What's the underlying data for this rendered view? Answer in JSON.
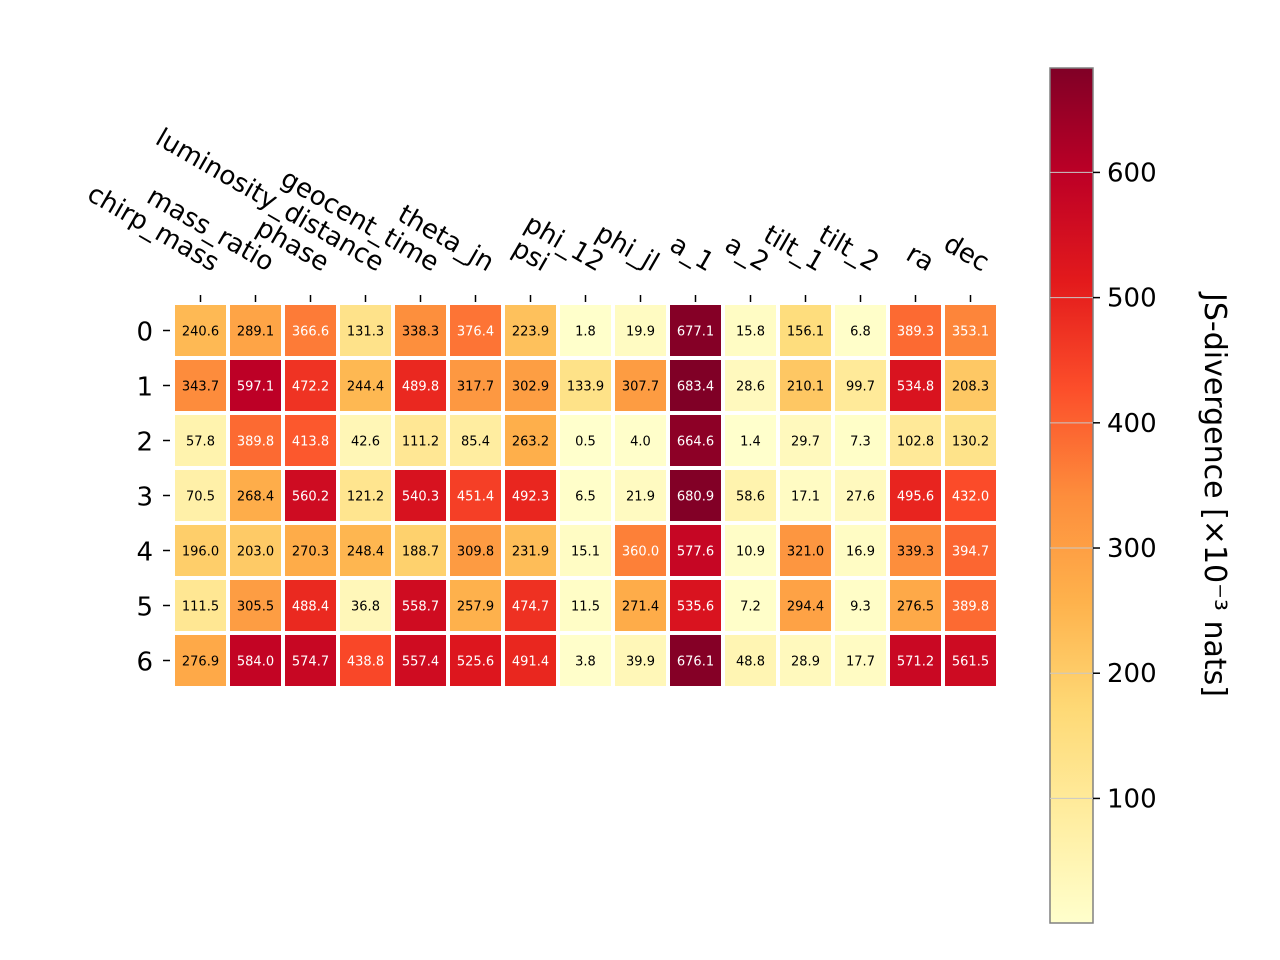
{
  "chart_data": {
    "type": "heatmap",
    "columns": [
      "chirp_mass",
      "mass_ratio",
      "phase",
      "luminosity_distance",
      "geocent_time",
      "theta_jn",
      "psi",
      "phi_12",
      "phi_jl",
      "a_1",
      "a_2",
      "tilt_1",
      "tilt_2",
      "ra",
      "dec"
    ],
    "rows": [
      "0",
      "1",
      "2",
      "3",
      "4",
      "5",
      "6"
    ],
    "values": [
      [
        240.6,
        289.1,
        366.6,
        131.3,
        338.3,
        376.4,
        223.9,
        1.8,
        19.9,
        677.1,
        15.8,
        156.1,
        6.8,
        389.3,
        353.1
      ],
      [
        343.7,
        597.1,
        472.2,
        244.4,
        489.8,
        317.7,
        302.9,
        133.9,
        307.7,
        683.4,
        28.6,
        210.1,
        99.7,
        534.8,
        208.3
      ],
      [
        57.8,
        389.8,
        413.8,
        42.6,
        111.2,
        85.4,
        263.2,
        0.5,
        4.0,
        664.6,
        1.4,
        29.7,
        7.3,
        102.8,
        130.2
      ],
      [
        70.5,
        268.4,
        560.2,
        121.2,
        540.3,
        451.4,
        492.3,
        6.5,
        21.9,
        680.9,
        58.6,
        17.1,
        27.6,
        495.6,
        432.0
      ],
      [
        196.0,
        203.0,
        270.3,
        248.4,
        188.7,
        309.8,
        231.9,
        15.1,
        360.0,
        577.6,
        10.9,
        321.0,
        16.9,
        339.3,
        394.7
      ],
      [
        111.5,
        305.5,
        488.4,
        36.8,
        558.7,
        257.9,
        474.7,
        11.5,
        271.4,
        535.6,
        7.2,
        294.4,
        9.3,
        276.5,
        389.8
      ],
      [
        276.9,
        584.0,
        574.7,
        438.8,
        557.4,
        525.6,
        491.4,
        3.8,
        39.9,
        676.1,
        48.8,
        28.9,
        17.7,
        571.2,
        561.5
      ]
    ],
    "colorbar": {
      "label": "JS-divergence [×10⁻³ nats]",
      "ticks": [
        100,
        200,
        300,
        400,
        500,
        600
      ],
      "range": [
        0.5,
        683.4
      ],
      "colormap": "YlOrRd"
    },
    "colors": {
      "colormap_stops": [
        "#ffffcc",
        "#ffeda0",
        "#fed976",
        "#feb24c",
        "#fd8d3c",
        "#fc4e2a",
        "#e31a1c",
        "#bd0026",
        "#800026"
      ],
      "text_dark": "#000000",
      "text_light": "#ffffff"
    }
  }
}
